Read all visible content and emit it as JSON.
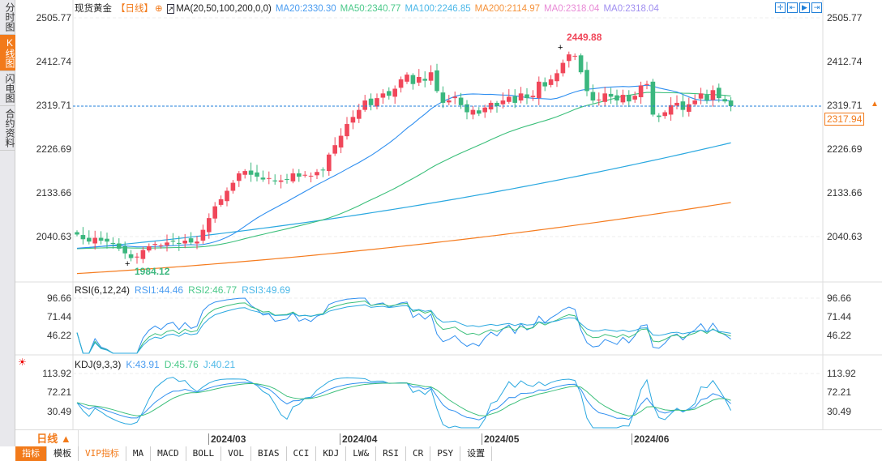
{
  "sidebar": [
    {
      "label": "分时图"
    },
    {
      "label": "K线图",
      "active": true
    },
    {
      "label": "闪电图"
    },
    {
      "label": "合约资料"
    }
  ],
  "header": {
    "name": "现货黄金",
    "period": "【日线】",
    "ma_name": "MA(20,50,100,200,0,0)",
    "ma20": "MA20:2330.30",
    "ma50": "MA50:2340.77",
    "ma100": "MA100:2246.85",
    "ma200": "MA200:2114.97",
    "ma0a": "MA0:2318.04",
    "ma0b": "MA0:2318.04"
  },
  "toolbar_icons": [
    "crosshair-icon",
    "zoom-range-icon",
    "play-icon",
    "right-end-icon"
  ],
  "colors": {
    "up": "#f0475a",
    "down": "#3bb77e",
    "ma20": "#2f8ff0",
    "ma50": "#3bbf7a",
    "ma100": "#2aa8e0",
    "ma200": "#f57c1f",
    "accent": "#f27a1a"
  },
  "chart_data": {
    "type": "candlestick",
    "ylim": [
      1984.12,
      2505.77
    ],
    "y_ticks": [
      "2505.77",
      "2412.74",
      "2319.71",
      "2226.69",
      "2133.66",
      "2040.63"
    ],
    "last_price": "2317.94",
    "max_label": "2449.88",
    "min_label": "1984.12",
    "closes": [
      2045,
      2035,
      2030,
      2038,
      2032,
      2030,
      2025,
      2015,
      2005,
      1995,
      1998,
      2012,
      2020,
      2025,
      2022,
      2028,
      2030,
      2025,
      2032,
      2028,
      2030,
      2055,
      2080,
      2105,
      2120,
      2138,
      2155,
      2175,
      2180,
      2172,
      2168,
      2162,
      2165,
      2158,
      2160,
      2162,
      2175,
      2168,
      2172,
      2170,
      2178,
      2182,
      2215,
      2235,
      2255,
      2280,
      2295,
      2310,
      2330,
      2320,
      2335,
      2345,
      2340,
      2355,
      2375,
      2385,
      2365,
      2380,
      2372,
      2390,
      2350,
      2325,
      2330,
      2338,
      2320,
      2305,
      2310,
      2302,
      2315,
      2325,
      2318,
      2330,
      2338,
      2325,
      2345,
      2335,
      2340,
      2370,
      2360,
      2375,
      2388,
      2410,
      2428,
      2425,
      2390,
      2350,
      2330,
      2332,
      2345,
      2338,
      2330,
      2342,
      2328,
      2340,
      2362,
      2365,
      2300,
      2295,
      2305,
      2320,
      2325,
      2310,
      2322,
      2330,
      2345,
      2330,
      2352,
      2335,
      2328,
      2318
    ],
    "ma100_range": [
      2015,
      2240
    ],
    "ma200_range": [
      1962,
      2113
    ],
    "x_labels": [
      "2024/03",
      "2024/04",
      "2024/05",
      "2024/06"
    ],
    "rsi": {
      "title": "RSI(6,12,24)",
      "rsi1": "RSI1:44.46",
      "rsi2": "RSI2:46.77",
      "rsi3": "RSI3:49.69",
      "ticks": [
        "96.66",
        "71.44",
        "46.22"
      ]
    },
    "kdj": {
      "title": "KDJ(9,3,3)",
      "k": "K:43.91",
      "d": "D:45.76",
      "j": "J:40.21",
      "ticks": [
        "113.92",
        "72.21",
        "30.49"
      ]
    }
  },
  "bottom": {
    "period": "日线 ▲",
    "tabs": [
      "指标",
      "模板",
      "VIP指标",
      "MA",
      "MACD",
      "BOLL",
      "VOL",
      "BIAS",
      "CCI",
      "KDJ",
      "LW&",
      "RSI",
      "CR",
      "PSY",
      "设置"
    ]
  }
}
